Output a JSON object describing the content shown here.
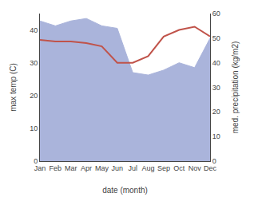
{
  "chart_data": {
    "type": "line",
    "xlabel": "date (month)",
    "ylabel": "max temp (C)",
    "y2label": "med. precipitation (kg/m2)",
    "categories": [
      "Jan",
      "Feb",
      "Mar",
      "Apr",
      "May",
      "Jun",
      "Jul",
      "Aug",
      "Sep",
      "Oct",
      "Nov",
      "Dec"
    ],
    "series": [
      {
        "type": "area",
        "axis": "y2",
        "color": "#aab4db",
        "values": [
          57,
          55,
          57,
          58,
          55,
          54,
          36,
          35,
          37,
          40,
          38,
          50
        ]
      },
      {
        "type": "line",
        "color": "#c0534a",
        "values": [
          37,
          36.5,
          36.5,
          36,
          35,
          30,
          30,
          32,
          38,
          40,
          41,
          38
        ]
      }
    ],
    "ylim": [
      0,
      45
    ],
    "yticks": [
      0,
      10,
      20,
      30,
      40
    ],
    "y2lim": [
      0,
      60
    ],
    "y2ticks": [
      0,
      10,
      20,
      30,
      40,
      50,
      60
    ],
    "grid": false
  }
}
